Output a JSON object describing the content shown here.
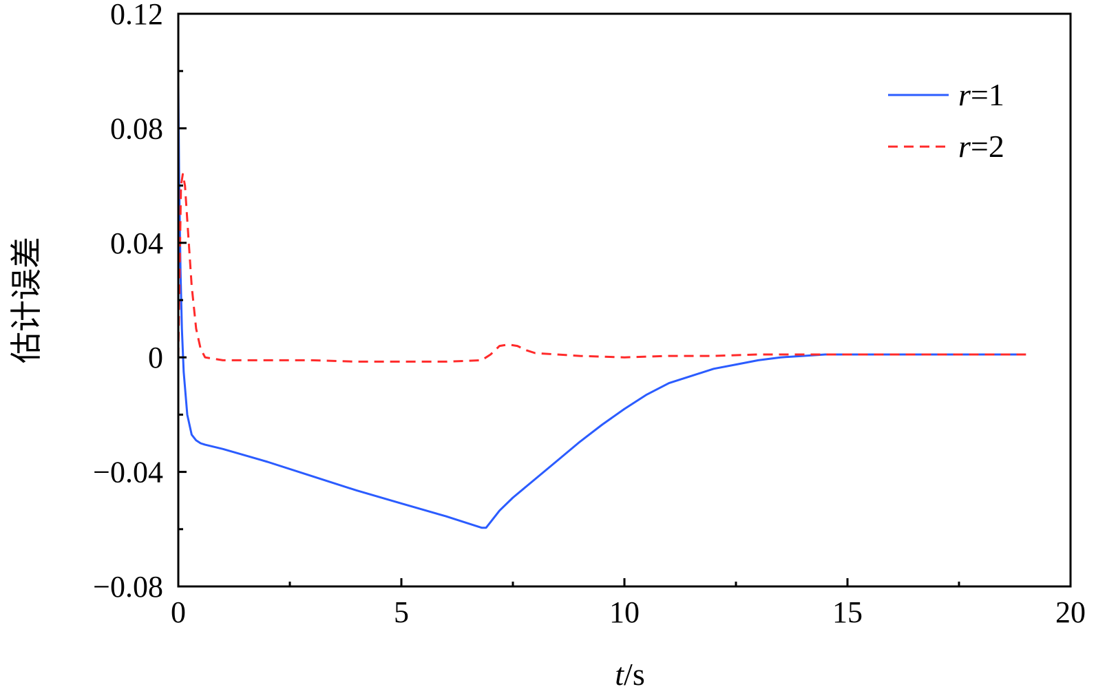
{
  "chart_data": {
    "type": "line",
    "title": "",
    "xlabel_var": "t",
    "xlabel_unit": "/s",
    "ylabel": "估计误差",
    "xlim": [
      0,
      20
    ],
    "ylim": [
      -0.08,
      0.12
    ],
    "x_ticks": [
      0,
      5,
      10,
      15,
      20
    ],
    "x_tick_labels": [
      "0",
      "5",
      "10",
      "15",
      "20"
    ],
    "y_ticks": [
      0.12,
      0.08,
      0.04,
      0,
      -0.04,
      -0.08
    ],
    "y_tick_labels": [
      "0.12",
      "0.08",
      "0.04",
      "0",
      "−0.04",
      "−0.08"
    ],
    "grid": false,
    "legend_position": "top-right",
    "series": [
      {
        "name_var": "r",
        "name_suffix": "=1",
        "color": "#2b5cff",
        "dash": "solid",
        "x": [
          0,
          0.02,
          0.05,
          0.08,
          0.12,
          0.2,
          0.3,
          0.4,
          0.5,
          0.6,
          1,
          2,
          3,
          4,
          5,
          6,
          6.8,
          6.9,
          7,
          7.2,
          7.5,
          8,
          8.5,
          9,
          9.5,
          10,
          10.5,
          11,
          11.5,
          12,
          12.5,
          13,
          13.5,
          14,
          14.5,
          15,
          16,
          17,
          18,
          19
        ],
        "y": [
          0.095,
          0.06,
          0.03,
          0.01,
          -0.005,
          -0.02,
          -0.027,
          -0.029,
          -0.03,
          -0.0305,
          -0.032,
          -0.0365,
          -0.0415,
          -0.0465,
          -0.051,
          -0.0555,
          -0.0595,
          -0.0595,
          -0.0575,
          -0.0535,
          -0.049,
          -0.0425,
          -0.036,
          -0.0295,
          -0.0235,
          -0.018,
          -0.013,
          -0.009,
          -0.0065,
          -0.004,
          -0.0025,
          -0.001,
          0,
          0.0005,
          0.001,
          0.001,
          0.001,
          0.001,
          0.001,
          0.001
        ]
      },
      {
        "name_var": "r",
        "name_suffix": "=2",
        "color": "#ff2a2a",
        "dash": "dashed",
        "x": [
          0,
          0.03,
          0.06,
          0.1,
          0.15,
          0.2,
          0.3,
          0.4,
          0.5,
          0.6,
          0.8,
          1,
          2,
          3,
          4,
          5,
          6,
          6.8,
          7,
          7.2,
          7.4,
          7.6,
          7.8,
          8,
          8.5,
          9,
          10,
          11,
          12,
          13,
          14,
          15,
          16,
          17,
          18,
          19
        ],
        "y": [
          0,
          0.03,
          0.06,
          0.064,
          0.06,
          0.048,
          0.025,
          0.01,
          0.003,
          0,
          -0.0005,
          -0.001,
          -0.001,
          -0.001,
          -0.0015,
          -0.0015,
          -0.0015,
          -0.001,
          0.001,
          0.004,
          0.0045,
          0.004,
          0.0025,
          0.0015,
          0.001,
          0.0005,
          0,
          0.0005,
          0.0005,
          0.001,
          0.001,
          0.001,
          0.001,
          0.001,
          0.001,
          0.001
        ]
      }
    ]
  }
}
